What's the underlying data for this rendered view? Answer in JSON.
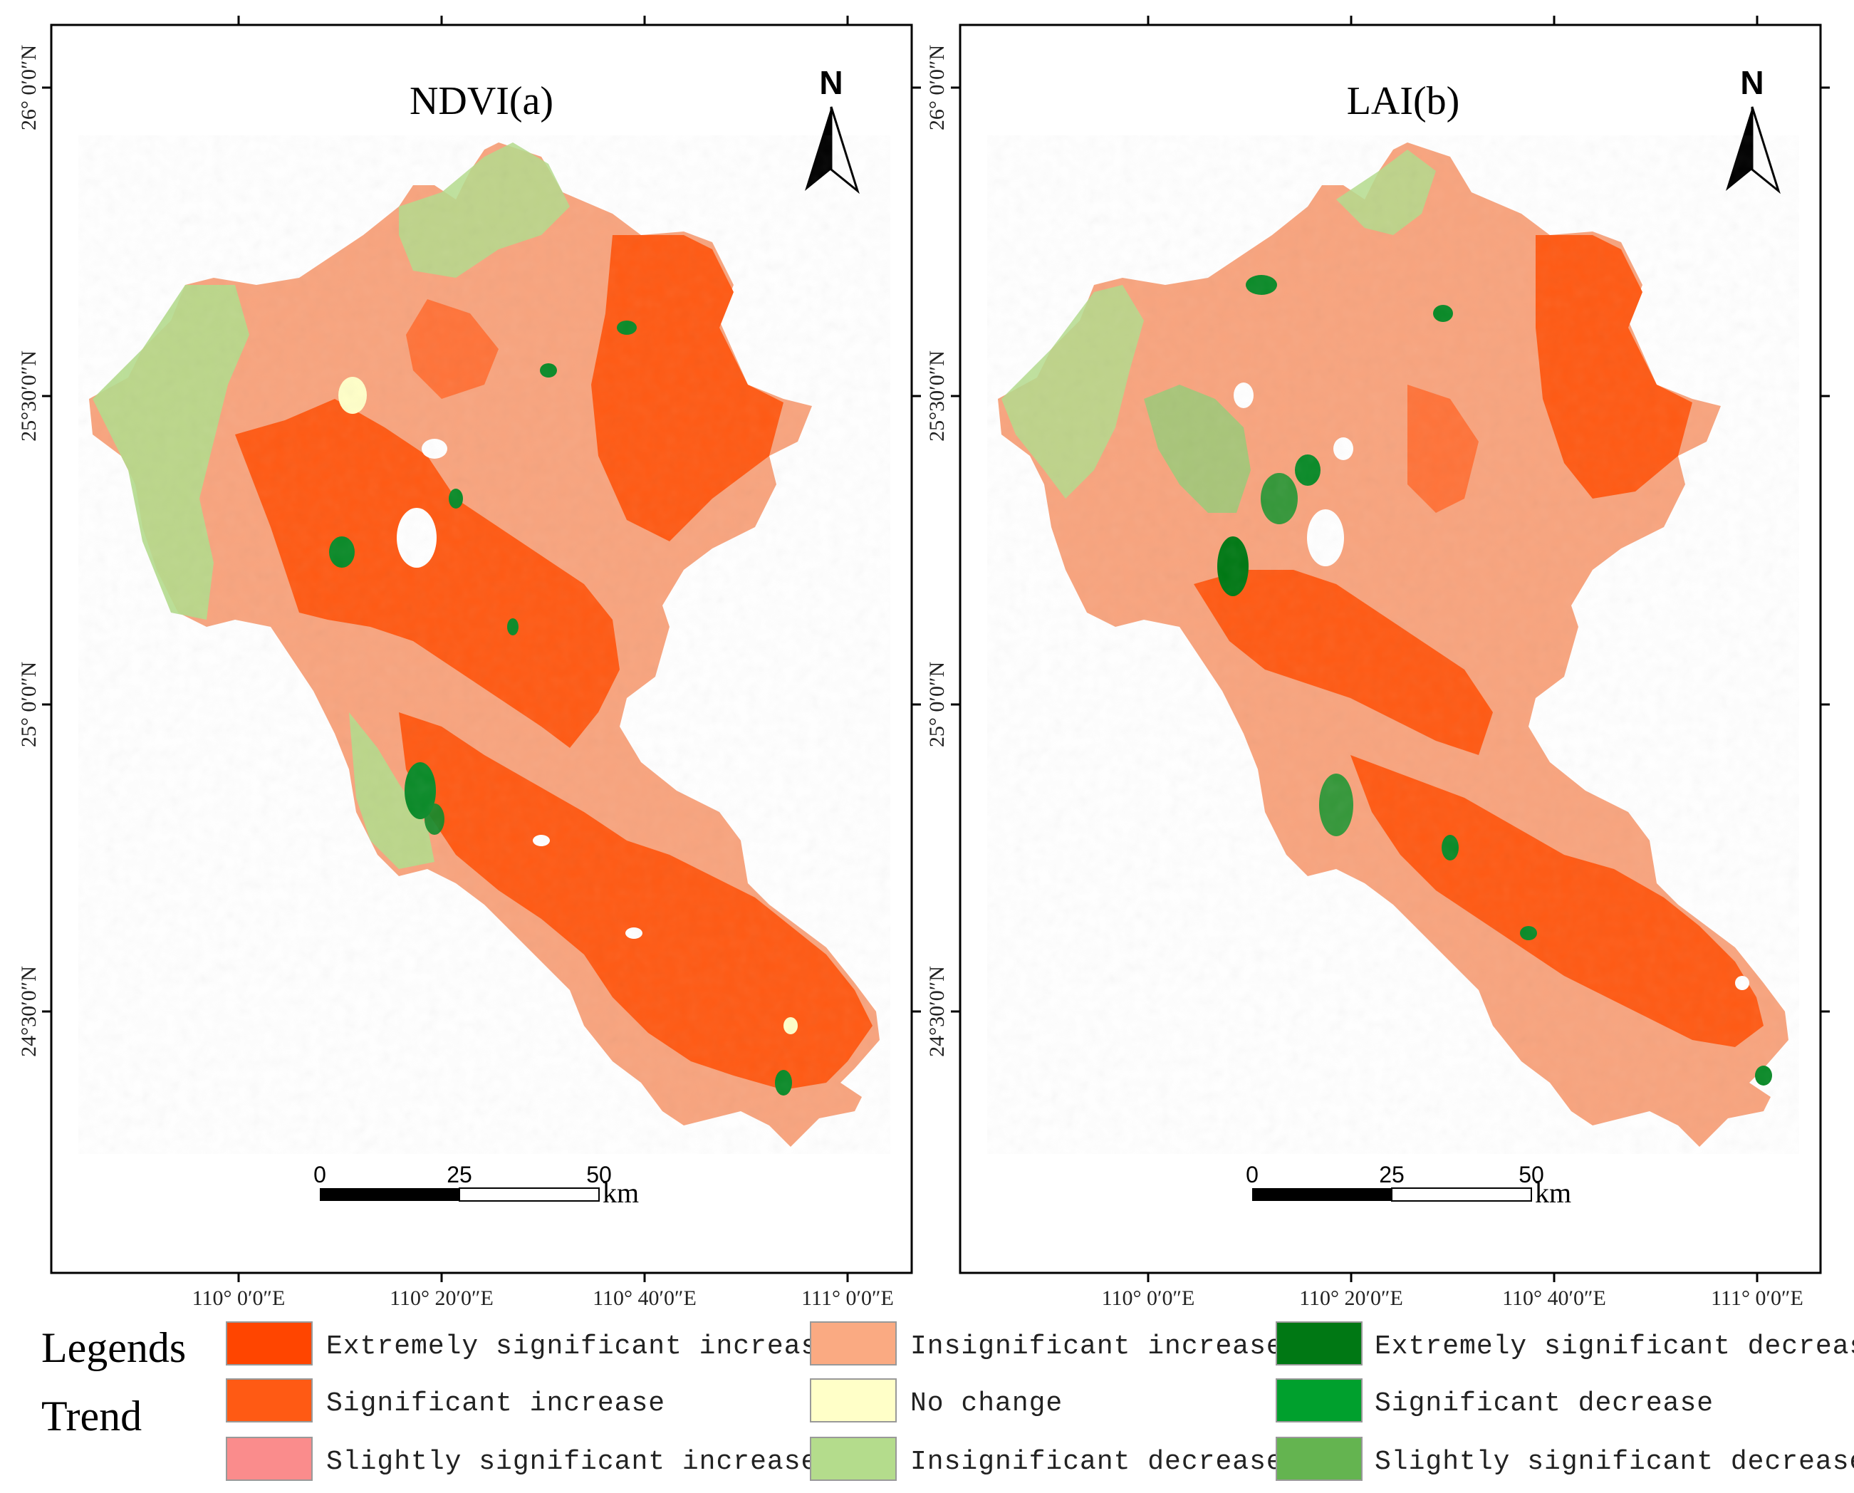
{
  "maps": [
    {
      "id": "ndvi",
      "title": "NDVI(a)",
      "lat_labels": [
        "26° 0′0″N",
        "25°30′0″N",
        "25° 0′0″N",
        "24°30′0″N"
      ],
      "lon_labels": [
        "110° 0′0″E",
        "110° 20′0″E",
        "110° 40′0″E",
        "111° 0′0″E"
      ],
      "north_label": "N",
      "scale": {
        "ticks": [
          "0",
          "25",
          "50"
        ],
        "unit": "km"
      }
    },
    {
      "id": "lai",
      "title": "LAI(b)",
      "lat_labels": [
        "26° 0′0″N",
        "25°30′0″N",
        "25° 0′0″N",
        "24°30′0″N"
      ],
      "lon_labels": [
        "110° 0′0″E",
        "110° 20′0″E",
        "110° 40′0″E",
        "111° 0′0″E"
      ],
      "north_label": "N",
      "scale": {
        "ticks": [
          "0",
          "25",
          "50"
        ],
        "unit": "km"
      }
    }
  ],
  "legend": {
    "heading_1": "Legends",
    "heading_2": "Trend",
    "items": [
      {
        "label": "Extremely significant increase",
        "color": "#FF4500"
      },
      {
        "label": "Significant increase",
        "color": "#FF5A14"
      },
      {
        "label": "Slightly significant increase",
        "color": "#FA8C8C"
      },
      {
        "label": "Insignificant increase",
        "color": "#FAAA82"
      },
      {
        "label": "No change",
        "color": "#FFFFC8"
      },
      {
        "label": "Insignificant decrease",
        "color": "#B4DC8C"
      },
      {
        "label": "Extremely significant decrease",
        "color": "#007814"
      },
      {
        "label": "Significant decrease",
        "color": "#00A02D"
      },
      {
        "label": "Slightly significant decrease",
        "color": "#64B450"
      }
    ]
  },
  "palette": {
    "frame": "#000000",
    "base_fill": "#F8A47E",
    "strong_increase": "#FF5A14",
    "light_decrease": "#B4DC8C",
    "dark_decrease": "#0A8A28",
    "no_change": "#FFFFC8"
  }
}
